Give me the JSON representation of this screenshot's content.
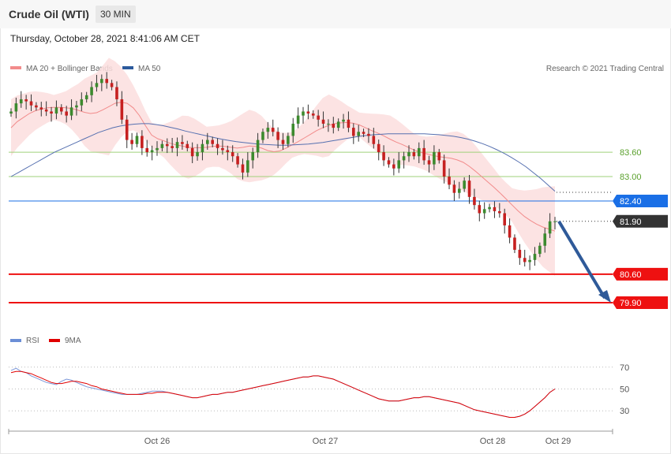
{
  "header": {
    "title": "Crude Oil (WTI)",
    "timeframe": "30 MIN",
    "datetime": "Thursday, October 28, 2021 8:41:06 AM CET"
  },
  "legend": {
    "ma20": {
      "label": "MA 20 + Bollinger Bands",
      "color": "#f28b8b"
    },
    "ma50": {
      "label": "MA 50",
      "color": "#2c5a9c"
    },
    "copyright": "Research © 2021 Trading Central",
    "rsi": {
      "label": "RSI",
      "color": "#6b8ed6"
    },
    "rsi_ma": {
      "label": "9MA",
      "color": "#e00000"
    }
  },
  "chart_data": [
    {
      "type": "candlestick",
      "title": "Crude Oil (WTI)",
      "x_ticks": [
        "Oct 26",
        "Oct 27",
        "Oct 28",
        "Oct 29"
      ],
      "ylim": [
        79.3,
        85.5
      ],
      "levels": [
        {
          "value": "83.60",
          "role": "resistance",
          "color": "#9fd27a",
          "style": "thin"
        },
        {
          "value": "83.00",
          "role": "resistance",
          "color": "#9fd27a",
          "style": "thin"
        },
        {
          "value": "82.40",
          "role": "pivot",
          "color": "#1a6fe6",
          "style": "line"
        },
        {
          "value": "81.90",
          "role": "last",
          "color": "#333333",
          "style": "dotted"
        },
        {
          "value": "80.60",
          "role": "support",
          "color": "#ee1111",
          "style": "thick"
        },
        {
          "value": "79.90",
          "role": "support",
          "color": "#ee1111",
          "style": "thick"
        }
      ],
      "trend_arrow": {
        "from": 81.9,
        "to": 79.9,
        "color": "#2f5a99"
      },
      "close": [
        84.6,
        84.8,
        84.9,
        84.85,
        84.75,
        84.7,
        84.65,
        84.6,
        84.55,
        84.7,
        84.6,
        84.5,
        84.7,
        84.75,
        84.9,
        85.0,
        85.2,
        85.3,
        85.4,
        85.3,
        85.2,
        84.9,
        84.4,
        83.9,
        83.8,
        84.0,
        83.7,
        83.6,
        83.65,
        83.7,
        83.8,
        83.75,
        83.7,
        83.85,
        83.8,
        83.7,
        83.5,
        83.6,
        83.8,
        83.9,
        83.8,
        83.7,
        83.65,
        83.6,
        83.5,
        83.3,
        83.1,
        83.4,
        83.6,
        83.9,
        84.1,
        84.2,
        84.1,
        83.9,
        83.8,
        84.0,
        84.3,
        84.5,
        84.6,
        84.55,
        84.5,
        84.4,
        84.3,
        84.3,
        84.2,
        84.35,
        84.4,
        84.2,
        84.0,
        84.1,
        84.05,
        84.0,
        83.8,
        83.6,
        83.4,
        83.3,
        83.2,
        83.4,
        83.5,
        83.6,
        83.5,
        83.7,
        83.4,
        83.3,
        83.6,
        83.4,
        83.0,
        82.8,
        82.6,
        82.7,
        82.9,
        82.5,
        82.3,
        82.1,
        82.2,
        82.25,
        82.15,
        82.1,
        81.8,
        81.5,
        81.2,
        81.0,
        80.9,
        80.95,
        81.1,
        81.3,
        81.6,
        81.9,
        81.9
      ],
      "ma20": [
        84.2,
        84.35,
        84.45,
        84.55,
        84.62,
        84.66,
        84.69,
        84.7,
        84.7,
        84.69,
        84.67,
        84.63,
        84.58,
        84.55,
        84.57,
        84.64,
        84.72,
        84.8,
        84.83,
        84.8,
        84.69,
        84.5,
        84.25,
        84.02,
        83.93,
        83.88,
        83.82,
        83.78,
        83.75,
        83.72,
        83.71,
        83.71,
        83.72,
        83.74,
        83.75,
        83.74,
        83.72,
        83.7,
        83.72,
        83.75,
        83.74,
        83.7,
        83.64,
        83.61,
        83.63,
        83.7,
        83.78,
        83.86,
        83.95,
        84.04,
        84.13,
        84.2,
        84.26,
        84.3,
        84.32,
        84.33,
        84.31,
        84.27,
        84.2,
        84.13,
        84.07,
        84.0,
        83.92,
        83.85,
        83.79,
        83.72,
        83.65,
        83.6,
        83.56,
        83.52,
        83.49,
        83.47,
        83.45,
        83.41,
        83.35,
        83.25,
        83.13,
        83.0,
        82.87,
        82.74,
        82.6,
        82.45,
        82.3,
        82.15,
        82.02,
        81.92,
        81.83,
        81.76,
        81.71,
        81.66
      ],
      "ma50": [
        83.0,
        83.1,
        83.2,
        83.3,
        83.4,
        83.5,
        83.6,
        83.68,
        83.76,
        83.84,
        83.92,
        84.0,
        84.08,
        84.14,
        84.2,
        84.24,
        84.27,
        84.29,
        84.3,
        84.3,
        84.28,
        84.25,
        84.21,
        84.17,
        84.12,
        84.08,
        84.04,
        84.0,
        83.96,
        83.92,
        83.89,
        83.86,
        83.84,
        83.82,
        83.8,
        83.79,
        83.78,
        83.77,
        83.77,
        83.78,
        83.79,
        83.8,
        83.82,
        83.84,
        83.87,
        83.9,
        83.93,
        83.96,
        83.99,
        84.01,
        84.03,
        84.04,
        84.05,
        84.05,
        84.05,
        84.05,
        84.05,
        84.05,
        84.04,
        84.03,
        84.01,
        83.99,
        83.96,
        83.92,
        83.87,
        83.81,
        83.74,
        83.66,
        83.57,
        83.47,
        83.36,
        83.24,
        83.1,
        82.96,
        82.8,
        82.64
      ],
      "bb_width": [
        0.7,
        0.6,
        0.5,
        0.4,
        0.3,
        0.4,
        0.6,
        0.9,
        1.0,
        1.2,
        0.9,
        0.6,
        0.4,
        0.3,
        0.4,
        0.6,
        0.8,
        0.7,
        0.5,
        0.5,
        0.6,
        0.8,
        0.9,
        0.8,
        0.6,
        0.4,
        0.3,
        0.4,
        0.6,
        0.8,
        0.6,
        0.4,
        0.3,
        0.4,
        0.5,
        0.6,
        0.5,
        0.4,
        0.4,
        0.5,
        0.6,
        0.7,
        0.7,
        0.6,
        0.5,
        0.4,
        0.4,
        0.6,
        0.8,
        1.0,
        1.1
      ]
    },
    {
      "type": "line",
      "title": "RSI",
      "ylim": [
        15,
        85
      ],
      "y_ticks": [
        "70",
        "50",
        "30"
      ],
      "series": [
        {
          "name": "RSI",
          "values": [
            67,
            69,
            66,
            65,
            62,
            60,
            58,
            56,
            55,
            54,
            57,
            59,
            58,
            56,
            54,
            52,
            51,
            50,
            49,
            48,
            47,
            46,
            45,
            45,
            45,
            45,
            46,
            47,
            48,
            48,
            48,
            47,
            46,
            45,
            44,
            43,
            42,
            42,
            43,
            44,
            45,
            45,
            46,
            47,
            47,
            48,
            49,
            50,
            51,
            52,
            53,
            54,
            55,
            56,
            57,
            58,
            59,
            60,
            61,
            61,
            62,
            62,
            61,
            60,
            59,
            57,
            55,
            53,
            51,
            49,
            47,
            45,
            43,
            41,
            40,
            39,
            39,
            39,
            40,
            41,
            42,
            42,
            43,
            43,
            42,
            41,
            40,
            39,
            38,
            37,
            35,
            33,
            31,
            30,
            29,
            28,
            27,
            26,
            25,
            24,
            24,
            25,
            27,
            30,
            34,
            38,
            42,
            47,
            50
          ]
        },
        {
          "name": "9MA",
          "values": [
            65,
            66,
            66,
            65,
            64,
            62,
            60,
            58,
            56,
            55,
            55,
            56,
            57,
            57,
            56,
            55,
            53,
            52,
            50,
            49,
            48,
            47,
            46,
            45,
            45,
            45,
            45,
            46,
            46,
            47,
            47,
            47,
            46,
            45,
            44,
            43,
            42,
            42,
            43,
            44,
            45,
            45,
            46,
            47,
            47,
            48,
            49,
            50,
            51,
            52,
            53,
            54,
            55,
            56,
            57,
            58,
            59,
            60,
            61,
            61,
            62,
            62,
            61,
            60,
            59,
            57,
            55,
            53,
            51,
            49,
            47,
            45,
            43,
            41,
            40,
            39,
            39,
            39,
            40,
            41,
            42,
            42,
            43,
            43,
            42,
            41,
            40,
            39,
            38,
            37,
            35,
            33,
            31,
            30,
            29,
            28,
            27,
            26,
            25,
            24,
            24,
            25,
            27,
            30,
            34,
            38,
            42,
            47,
            50
          ]
        }
      ]
    }
  ]
}
